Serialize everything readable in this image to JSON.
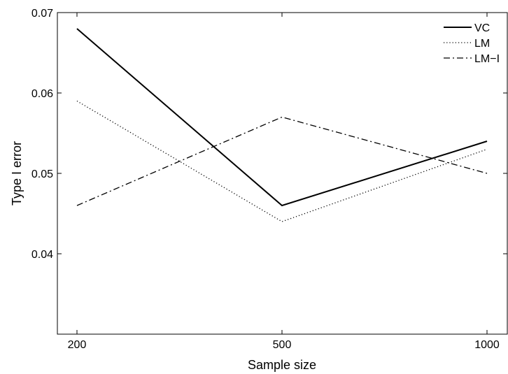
{
  "chart_data": {
    "type": "line",
    "title": "",
    "xlabel": "Sample size",
    "ylabel": "Type I error",
    "categories": [
      "200",
      "500",
      "1000"
    ],
    "ylim": [
      0.03,
      0.07
    ],
    "yticks": [
      "0.04",
      "0.05",
      "0.06",
      "0.07"
    ],
    "ytick_values": [
      0.04,
      0.05,
      0.06,
      0.07
    ],
    "grid": false,
    "legend_position": "top-right",
    "series": [
      {
        "name": "VC",
        "values": [
          0.068,
          0.046,
          0.054
        ],
        "line_style": "solid",
        "color": "#000000"
      },
      {
        "name": "LM",
        "values": [
          0.059,
          0.044,
          0.053
        ],
        "line_style": "dotted",
        "color": "#000000"
      },
      {
        "name": "LM−I",
        "values": [
          0.046,
          0.057,
          0.05
        ],
        "line_style": "dashdot",
        "color": "#000000"
      }
    ]
  }
}
